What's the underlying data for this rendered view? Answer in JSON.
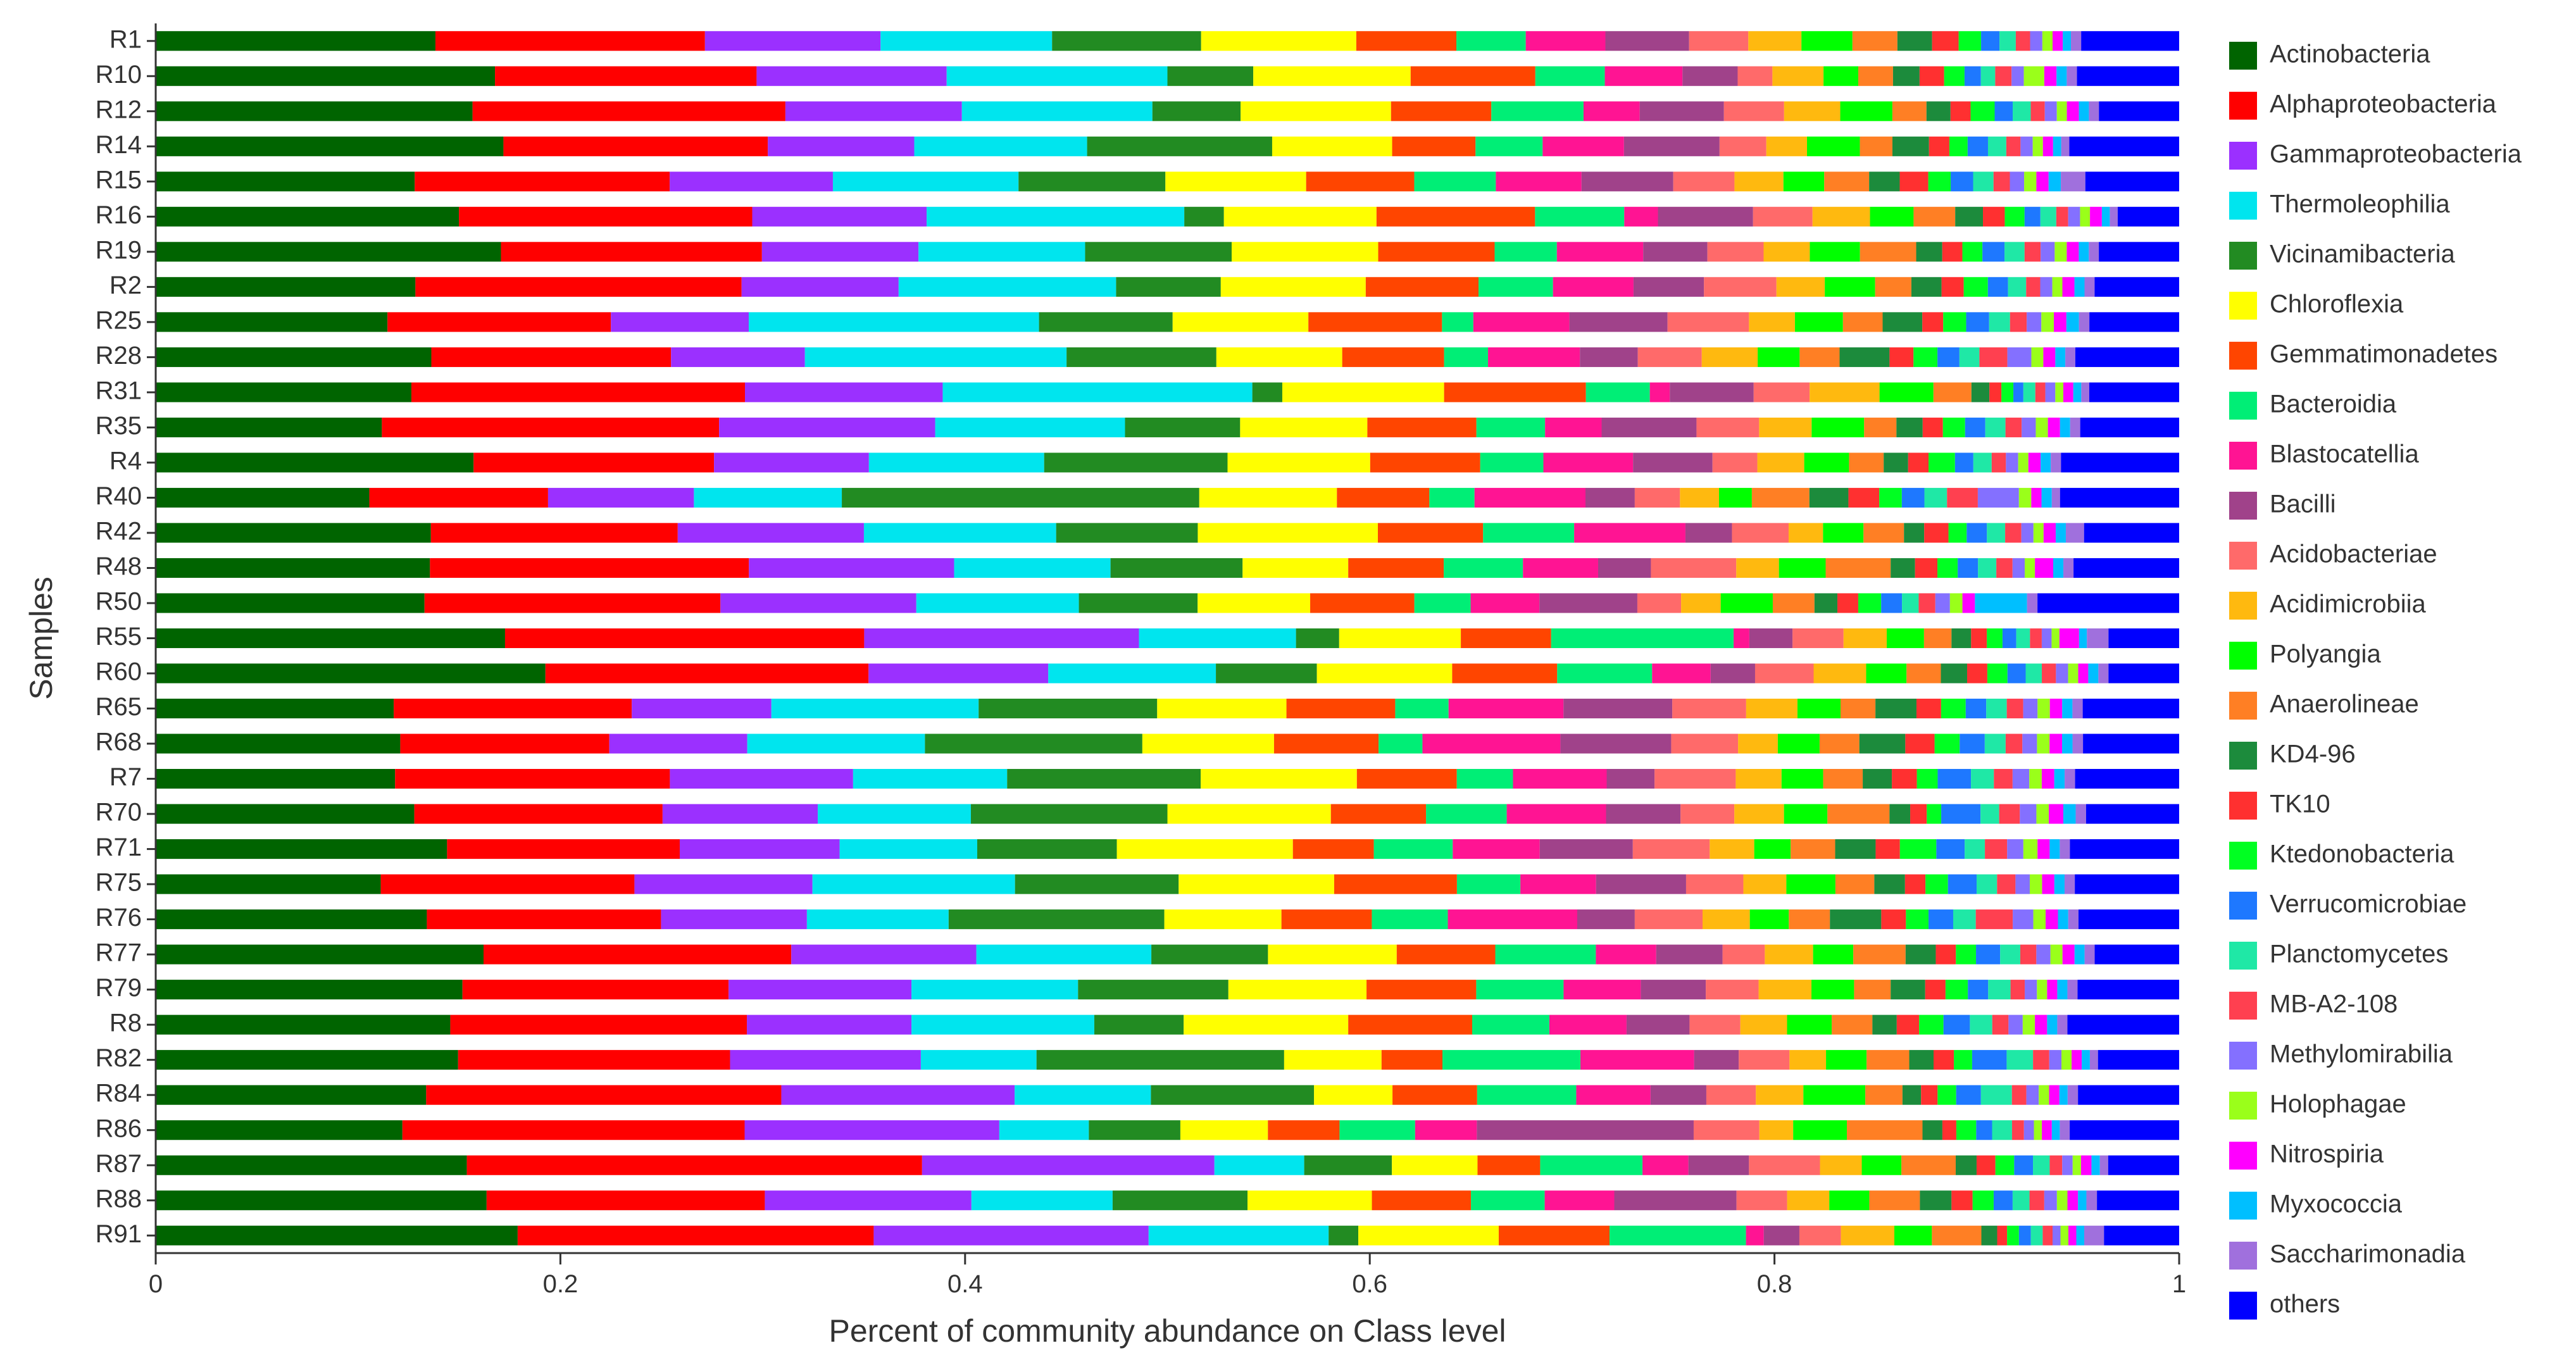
{
  "chart_data": {
    "type": "bar",
    "orientation": "horizontal",
    "stacked": true,
    "title": "",
    "xlabel": "Percent of community abundance on Class level",
    "ylabel": "Samples",
    "xlim": [
      0,
      1
    ],
    "xticks": [
      "0",
      "0.2",
      "0.4",
      "0.6",
      "0.8",
      "1"
    ],
    "grid": false,
    "legend_position": "right",
    "categories": [
      "R1",
      "R10",
      "R12",
      "R14",
      "R15",
      "R16",
      "R19",
      "R2",
      "R25",
      "R28",
      "R31",
      "R35",
      "R4",
      "R40",
      "R42",
      "R48",
      "R50",
      "R55",
      "R60",
      "R65",
      "R68",
      "R7",
      "R70",
      "R71",
      "R75",
      "R76",
      "R77",
      "R79",
      "R8",
      "R82",
      "R84",
      "R86",
      "R87",
      "R88",
      "R91"
    ],
    "series": [
      {
        "name": "Actinobacteria",
        "color": "#006400",
        "values": [
          0.137,
          0.166,
          0.158,
          0.171,
          0.127,
          0.153,
          0.172,
          0.129,
          0.111,
          0.138,
          0.128,
          0.112,
          0.156,
          0.104,
          0.136,
          0.135,
          0.129,
          0.178,
          0.193,
          0.116,
          0.117,
          0.115,
          0.125,
          0.144,
          0.11,
          0.132,
          0.163,
          0.151,
          0.145,
          0.149,
          0.131,
          0.124,
          0.149,
          0.157,
          0.183
        ]
      },
      {
        "name": "Alphaproteobacteria",
        "color": "#FF0000",
        "values": [
          0.132,
          0.128,
          0.156,
          0.13,
          0.125,
          0.148,
          0.13,
          0.162,
          0.107,
          0.12,
          0.167,
          0.167,
          0.118,
          0.087,
          0.122,
          0.157,
          0.142,
          0.183,
          0.16,
          0.116,
          0.1,
          0.132,
          0.12,
          0.115,
          0.124,
          0.114,
          0.153,
          0.131,
          0.146,
          0.134,
          0.172,
          0.172,
          0.218,
          0.132,
          0.18
        ]
      },
      {
        "name": "Gammaproteobacteria",
        "color": "#9B30FF",
        "values": [
          0.086,
          0.093,
          0.088,
          0.072,
          0.08,
          0.088,
          0.078,
          0.078,
          0.066,
          0.067,
          0.099,
          0.107,
          0.076,
          0.071,
          0.092,
          0.101,
          0.094,
          0.14,
          0.089,
          0.068,
          0.066,
          0.088,
          0.075,
          0.079,
          0.087,
          0.071,
          0.092,
          0.09,
          0.081,
          0.094,
          0.113,
          0.128,
          0.14,
          0.098,
          0.139
        ]
      },
      {
        "name": "Thermoleophilia",
        "color": "#00E5EE",
        "values": [
          0.084,
          0.108,
          0.095,
          0.085,
          0.091,
          0.13,
          0.083,
          0.108,
          0.139,
          0.131,
          0.155,
          0.094,
          0.086,
          0.072,
          0.095,
          0.077,
          0.078,
          0.08,
          0.083,
          0.101,
          0.085,
          0.074,
          0.074,
          0.068,
          0.099,
          0.069,
          0.087,
          0.082,
          0.09,
          0.057,
          0.066,
          0.045,
          0.043,
          0.067,
          0.091
        ]
      },
      {
        "name": "Vicinamibacteria",
        "color": "#228B22",
        "values": [
          0.073,
          0.042,
          0.044,
          0.091,
          0.072,
          0.02,
          0.073,
          0.052,
          0.064,
          0.075,
          0.015,
          0.057,
          0.09,
          0.174,
          0.07,
          0.065,
          0.057,
          0.022,
          0.05,
          0.087,
          0.104,
          0.093,
          0.095,
          0.069,
          0.08,
          0.105,
          0.058,
          0.074,
          0.044,
          0.122,
          0.079,
          0.046,
          0.042,
          0.064,
          0.015
        ]
      },
      {
        "name": "Chloroflexia",
        "color": "#FFFF00",
        "values": [
          0.076,
          0.077,
          0.075,
          0.059,
          0.069,
          0.077,
          0.073,
          0.072,
          0.065,
          0.063,
          0.081,
          0.063,
          0.07,
          0.067,
          0.089,
          0.052,
          0.054,
          0.062,
          0.067,
          0.063,
          0.063,
          0.075,
          0.079,
          0.087,
          0.076,
          0.057,
          0.064,
          0.068,
          0.081,
          0.048,
          0.038,
          0.044,
          0.041,
          0.059,
          0.071
        ]
      },
      {
        "name": "Gemmatimonadetes",
        "color": "#FF4500",
        "values": [
          0.049,
          0.061,
          0.05,
          0.041,
          0.053,
          0.08,
          0.058,
          0.056,
          0.064,
          0.051,
          0.071,
          0.054,
          0.054,
          0.045,
          0.052,
          0.047,
          0.05,
          0.046,
          0.052,
          0.053,
          0.05,
          0.048,
          0.046,
          0.04,
          0.06,
          0.044,
          0.049,
          0.054,
          0.061,
          0.03,
          0.041,
          0.036,
          0.03,
          0.047,
          0.056
        ]
      },
      {
        "name": "Bacteroidia",
        "color": "#00EE76",
        "values": [
          0.034,
          0.034,
          0.046,
          0.033,
          0.04,
          0.045,
          0.031,
          0.037,
          0.015,
          0.022,
          0.032,
          0.034,
          0.031,
          0.022,
          0.045,
          0.039,
          0.027,
          0.093,
          0.047,
          0.026,
          0.021,
          0.027,
          0.039,
          0.039,
          0.031,
          0.037,
          0.05,
          0.043,
          0.038,
          0.068,
          0.048,
          0.038,
          0.049,
          0.035,
          0.069
        ]
      },
      {
        "name": "Blastocatellia",
        "color": "#FF1493",
        "values": [
          0.039,
          0.038,
          0.028,
          0.04,
          0.042,
          0.017,
          0.043,
          0.04,
          0.046,
          0.046,
          0.01,
          0.028,
          0.044,
          0.054,
          0.055,
          0.037,
          0.033,
          0.008,
          0.029,
          0.056,
          0.066,
          0.045,
          0.048,
          0.043,
          0.037,
          0.063,
          0.03,
          0.038,
          0.038,
          0.056,
          0.036,
          0.031,
          0.022,
          0.033,
          0.009
        ]
      },
      {
        "name": "Bacilli",
        "color": "#A0428A",
        "values": [
          0.041,
          0.027,
          0.042,
          0.047,
          0.045,
          0.048,
          0.032,
          0.035,
          0.047,
          0.029,
          0.042,
          0.047,
          0.039,
          0.024,
          0.023,
          0.026,
          0.047,
          0.022,
          0.022,
          0.053,
          0.053,
          0.023,
          0.036,
          0.046,
          0.044,
          0.028,
          0.033,
          0.032,
          0.031,
          0.022,
          0.027,
          0.109,
          0.029,
          0.058,
          0.018
        ]
      },
      {
        "name": "Acidobacteriae",
        "color": "#FF6A6A",
        "values": [
          0.029,
          0.017,
          0.03,
          0.023,
          0.03,
          0.03,
          0.028,
          0.036,
          0.039,
          0.032,
          0.028,
          0.031,
          0.022,
          0.022,
          0.028,
          0.042,
          0.021,
          0.026,
          0.029,
          0.036,
          0.032,
          0.039,
          0.026,
          0.038,
          0.028,
          0.033,
          0.021,
          0.026,
          0.025,
          0.025,
          0.024,
          0.033,
          0.034,
          0.024,
          0.021
        ]
      },
      {
        "name": "Acidimicrobiia",
        "color": "#FFB90F",
        "values": [
          0.026,
          0.025,
          0.028,
          0.02,
          0.024,
          0.029,
          0.023,
          0.024,
          0.022,
          0.028,
          0.035,
          0.026,
          0.023,
          0.019,
          0.017,
          0.021,
          0.019,
          0.022,
          0.026,
          0.025,
          0.019,
          0.022,
          0.024,
          0.022,
          0.021,
          0.023,
          0.024,
          0.026,
          0.023,
          0.018,
          0.023,
          0.017,
          0.02,
          0.02,
          0.027
        ]
      },
      {
        "name": "Polyangia",
        "color": "#00FF00",
        "values": [
          0.025,
          0.017,
          0.026,
          0.026,
          0.02,
          0.022,
          0.025,
          0.025,
          0.023,
          0.021,
          0.027,
          0.026,
          0.022,
          0.016,
          0.02,
          0.023,
          0.025,
          0.019,
          0.02,
          0.021,
          0.02,
          0.02,
          0.021,
          0.018,
          0.024,
          0.019,
          0.02,
          0.021,
          0.022,
          0.02,
          0.03,
          0.027,
          0.019,
          0.019,
          0.019
        ]
      },
      {
        "name": "Anaerolineae",
        "color": "#FF7F24",
        "values": [
          0.022,
          0.017,
          0.017,
          0.016,
          0.022,
          0.021,
          0.028,
          0.018,
          0.019,
          0.02,
          0.019,
          0.016,
          0.017,
          0.028,
          0.02,
          0.032,
          0.02,
          0.014,
          0.017,
          0.017,
          0.019,
          0.019,
          0.03,
          0.022,
          0.019,
          0.02,
          0.026,
          0.018,
          0.02,
          0.021,
          0.018,
          0.038,
          0.026,
          0.024,
          0.025
        ]
      },
      {
        "name": "KD4-96",
        "color": "#1C8B3C",
        "values": [
          0.017,
          0.013,
          0.012,
          0.018,
          0.015,
          0.014,
          0.013,
          0.015,
          0.019,
          0.025,
          0.009,
          0.013,
          0.012,
          0.019,
          0.01,
          0.012,
          0.011,
          0.01,
          0.013,
          0.02,
          0.022,
          0.014,
          0.01,
          0.02,
          0.015,
          0.025,
          0.015,
          0.017,
          0.012,
          0.012,
          0.009,
          0.01,
          0.01,
          0.015,
          0.008
        ]
      },
      {
        "name": "TK10",
        "color": "#FF3030",
        "values": [
          0.013,
          0.012,
          0.01,
          0.01,
          0.014,
          0.011,
          0.01,
          0.011,
          0.01,
          0.012,
          0.006,
          0.01,
          0.01,
          0.015,
          0.012,
          0.011,
          0.01,
          0.008,
          0.01,
          0.012,
          0.014,
          0.012,
          0.008,
          0.012,
          0.01,
          0.012,
          0.01,
          0.01,
          0.011,
          0.01,
          0.008,
          0.007,
          0.009,
          0.01,
          0.005
        ]
      },
      {
        "name": "Ktedonobacteria",
        "color": "#00FF22",
        "values": [
          0.011,
          0.01,
          0.012,
          0.009,
          0.011,
          0.01,
          0.01,
          0.012,
          0.011,
          0.012,
          0.006,
          0.011,
          0.013,
          0.011,
          0.009,
          0.01,
          0.011,
          0.008,
          0.01,
          0.012,
          0.012,
          0.01,
          0.007,
          0.018,
          0.011,
          0.011,
          0.01,
          0.011,
          0.012,
          0.009,
          0.009,
          0.01,
          0.009,
          0.01,
          0.006
        ]
      },
      {
        "name": "Verrucomicrobiae",
        "color": "#1E78FF",
        "values": [
          0.009,
          0.008,
          0.009,
          0.01,
          0.011,
          0.008,
          0.011,
          0.01,
          0.011,
          0.011,
          0.005,
          0.01,
          0.009,
          0.011,
          0.01,
          0.01,
          0.01,
          0.007,
          0.009,
          0.01,
          0.012,
          0.016,
          0.019,
          0.014,
          0.014,
          0.012,
          0.012,
          0.01,
          0.013,
          0.017,
          0.012,
          0.008,
          0.009,
          0.009,
          0.006
        ]
      },
      {
        "name": "Planctomycetes",
        "color": "#1FE8A6",
        "values": [
          0.008,
          0.007,
          0.009,
          0.009,
          0.01,
          0.008,
          0.01,
          0.009,
          0.01,
          0.01,
          0.006,
          0.01,
          0.009,
          0.011,
          0.009,
          0.009,
          0.008,
          0.007,
          0.008,
          0.01,
          0.01,
          0.011,
          0.009,
          0.01,
          0.01,
          0.011,
          0.01,
          0.011,
          0.011,
          0.013,
          0.015,
          0.01,
          0.008,
          0.008,
          0.006
        ]
      },
      {
        "name": "MB-A2-108",
        "color": "#FF4050",
        "values": [
          0.007,
          0.008,
          0.007,
          0.007,
          0.008,
          0.006,
          0.008,
          0.007,
          0.008,
          0.014,
          0.005,
          0.008,
          0.007,
          0.015,
          0.008,
          0.008,
          0.008,
          0.006,
          0.007,
          0.008,
          0.008,
          0.009,
          0.01,
          0.011,
          0.009,
          0.018,
          0.008,
          0.007,
          0.008,
          0.008,
          0.007,
          0.006,
          0.006,
          0.007,
          0.005
        ]
      },
      {
        "name": "Methylomirabilia",
        "color": "#8470FF",
        "values": [
          0.006,
          0.006,
          0.006,
          0.006,
          0.007,
          0.006,
          0.007,
          0.006,
          0.007,
          0.012,
          0.005,
          0.007,
          0.006,
          0.02,
          0.006,
          0.006,
          0.007,
          0.005,
          0.006,
          0.007,
          0.007,
          0.008,
          0.008,
          0.008,
          0.007,
          0.01,
          0.007,
          0.006,
          0.007,
          0.006,
          0.006,
          0.005,
          0.005,
          0.006,
          0.004
        ]
      },
      {
        "name": "Holophagae",
        "color": "#9AFF1A",
        "values": [
          0.005,
          0.01,
          0.005,
          0.005,
          0.006,
          0.005,
          0.006,
          0.005,
          0.006,
          0.006,
          0.004,
          0.006,
          0.005,
          0.006,
          0.005,
          0.005,
          0.006,
          0.004,
          0.005,
          0.006,
          0.006,
          0.006,
          0.006,
          0.007,
          0.006,
          0.006,
          0.006,
          0.005,
          0.006,
          0.005,
          0.005,
          0.004,
          0.004,
          0.005,
          0.004
        ]
      },
      {
        "name": "Nitrospiria",
        "color": "#FF00FF",
        "values": [
          0.005,
          0.006,
          0.006,
          0.005,
          0.006,
          0.006,
          0.006,
          0.006,
          0.006,
          0.006,
          0.005,
          0.006,
          0.006,
          0.005,
          0.006,
          0.009,
          0.006,
          0.01,
          0.005,
          0.006,
          0.006,
          0.006,
          0.007,
          0.006,
          0.006,
          0.006,
          0.006,
          0.005,
          0.006,
          0.005,
          0.005,
          0.005,
          0.005,
          0.005,
          0.004
        ]
      },
      {
        "name": "Myxococcia",
        "color": "#00BFFF",
        "values": [
          0.004,
          0.005,
          0.005,
          0.004,
          0.006,
          0.004,
          0.005,
          0.005,
          0.006,
          0.005,
          0.004,
          0.005,
          0.005,
          0.005,
          0.005,
          0.005,
          0.025,
          0.004,
          0.005,
          0.005,
          0.005,
          0.005,
          0.006,
          0.005,
          0.005,
          0.005,
          0.005,
          0.005,
          0.005,
          0.004,
          0.004,
          0.004,
          0.004,
          0.004,
          0.004
        ]
      },
      {
        "name": "Saccharimonadia",
        "color": "#A070DD",
        "values": [
          0.005,
          0.005,
          0.005,
          0.004,
          0.012,
          0.004,
          0.005,
          0.005,
          0.005,
          0.005,
          0.004,
          0.005,
          0.005,
          0.004,
          0.009,
          0.005,
          0.005,
          0.011,
          0.005,
          0.005,
          0.005,
          0.005,
          0.005,
          0.005,
          0.005,
          0.005,
          0.005,
          0.005,
          0.005,
          0.004,
          0.005,
          0.005,
          0.004,
          0.005,
          0.01
        ]
      },
      {
        "name": "others",
        "color": "#0000FF",
        "values": [
          0.048,
          0.05,
          0.04,
          0.054,
          0.046,
          0.031,
          0.04,
          0.042,
          0.043,
          0.052,
          0.045,
          0.049,
          0.058,
          0.058,
          0.047,
          0.052,
          0.068,
          0.036,
          0.035,
          0.047,
          0.046,
          0.05,
          0.045,
          0.054,
          0.051,
          0.049,
          0.042,
          0.05,
          0.055,
          0.04,
          0.049,
          0.055,
          0.034,
          0.039,
          0.038
        ]
      }
    ]
  }
}
